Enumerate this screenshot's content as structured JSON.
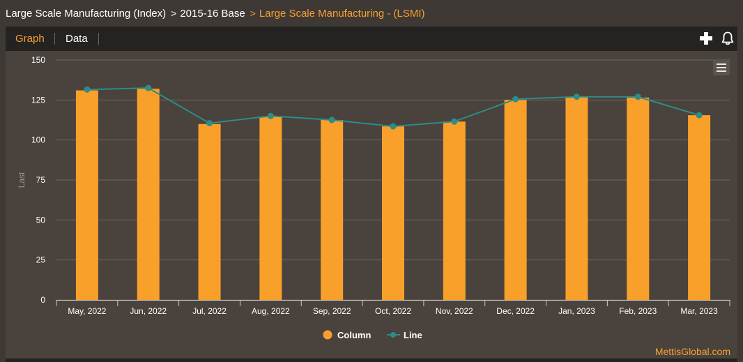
{
  "breadcrumb": {
    "item1": "Large Scale Manufacturing (Index)",
    "item2": "2015-16 Base",
    "item3": "Large Scale Manufacturing - (LSMI)",
    "separator": ">"
  },
  "tabs": {
    "graph": "Graph",
    "data": "Data"
  },
  "icons": {
    "add": "plus-icon",
    "alert": "bell-icon",
    "menu": "hamburger-menu-icon"
  },
  "colors": {
    "column": "#f9a02b",
    "line": "#2e8c89",
    "accent": "#f7a032"
  },
  "credit": "MettisGlobal.com",
  "chart_data": {
    "type": "bar",
    "categories": [
      "May, 2022",
      "Jun, 2022",
      "Jul, 2022",
      "Aug, 2022",
      "Sep, 2022",
      "Oct, 2022",
      "Nov, 2022",
      "Dec, 2022",
      "Jan, 2023",
      "Feb, 2023",
      "Mar, 2023"
    ],
    "series": [
      {
        "name": "Column",
        "type": "column",
        "values": [
          131,
          132,
          110,
          114.5,
          112.5,
          108.5,
          111.5,
          125,
          127,
          126.5,
          115.5
        ]
      },
      {
        "name": "Line",
        "type": "line",
        "values": [
          131.5,
          132.5,
          110.5,
          115,
          112.5,
          108.5,
          111.5,
          125.5,
          127,
          127,
          115.5
        ]
      }
    ],
    "ylabel": "Last",
    "ylim": [
      0,
      150
    ],
    "yticks": [
      0,
      25,
      50,
      75,
      100,
      125,
      150
    ],
    "grid": true,
    "legend": "bottom-center"
  }
}
